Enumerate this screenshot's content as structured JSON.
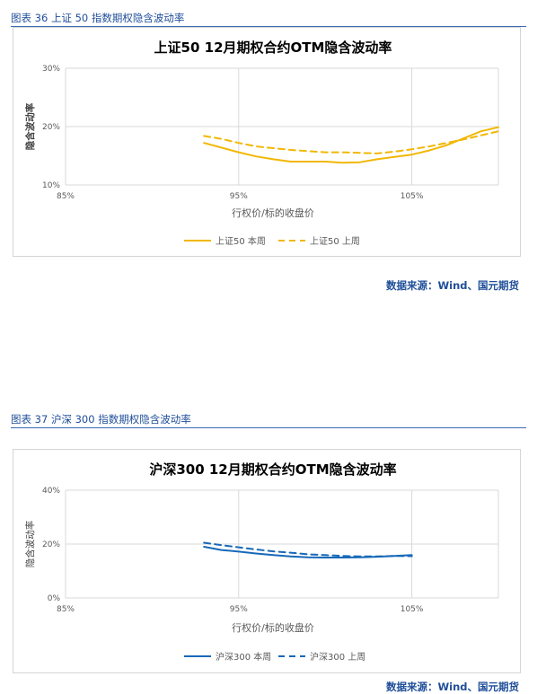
{
  "figures": [
    {
      "caption": "图表 36 上证 50 指数期权隐含波动率",
      "source": "数据来源：Wind、国元期货"
    },
    {
      "caption": "图表 37 沪深 300 指数期权隐含波动率",
      "source": "数据来源：Wind、国元期货"
    }
  ],
  "chart_data": [
    {
      "type": "line",
      "title": "上证50 12月期权合约OTM隐含波动率",
      "xlabel": "行权价/标的收盘价",
      "ylabel": "隐含波动率",
      "xlim": [
        85,
        110
      ],
      "ylim": [
        10,
        30
      ],
      "xticks": [
        85,
        95,
        105
      ],
      "xtick_labels": [
        "85%",
        "95%",
        "105%"
      ],
      "yticks": [
        10,
        20,
        30
      ],
      "ytick_labels": [
        "10%",
        "20%",
        "30%"
      ],
      "grid": true,
      "legend_position": "bottom-center",
      "series": [
        {
          "name": "上证50 本周",
          "color": "#f2b705",
          "dash": false,
          "x": [
            93,
            94,
            95,
            96,
            97,
            98,
            99,
            100,
            101,
            102,
            103,
            104,
            105,
            106,
            107,
            108,
            109,
            110
          ],
          "values": [
            17.2,
            16.4,
            15.6,
            14.9,
            14.4,
            14.0,
            14.0,
            14.0,
            13.8,
            13.9,
            14.4,
            14.8,
            15.2,
            15.9,
            16.8,
            18.0,
            19.2,
            19.9
          ]
        },
        {
          "name": "上证50 上周",
          "color": "#f2b705",
          "dash": true,
          "x": [
            93,
            94,
            95,
            96,
            97,
            98,
            99,
            100,
            101,
            102,
            103,
            104,
            105,
            106,
            107,
            108,
            109,
            110
          ],
          "values": [
            18.4,
            17.9,
            17.2,
            16.6,
            16.3,
            16.0,
            15.8,
            15.6,
            15.6,
            15.5,
            15.4,
            15.7,
            16.1,
            16.6,
            17.2,
            17.8,
            18.5,
            19.2
          ]
        }
      ]
    },
    {
      "type": "line",
      "title": "沪深300 12月期权合约OTM隐含波动率",
      "xlabel": "行权价/标的收盘价",
      "ylabel": "隐含波动率",
      "xlim": [
        85,
        110
      ],
      "ylim": [
        0,
        40
      ],
      "xticks": [
        85,
        95,
        105
      ],
      "xtick_labels": [
        "85%",
        "95%",
        "105%"
      ],
      "yticks": [
        0,
        20,
        40
      ],
      "ytick_labels": [
        "0%",
        "20%",
        "40%"
      ],
      "grid": true,
      "legend_position": "bottom-center",
      "series": [
        {
          "name": "沪深300 本周",
          "color": "#1769b8",
          "dash": false,
          "x": [
            93,
            94,
            95,
            96,
            97,
            98,
            99,
            100,
            101,
            102,
            103,
            104,
            105
          ],
          "values": [
            19.0,
            17.8,
            17.2,
            16.5,
            15.9,
            15.4,
            15.1,
            15.0,
            15.0,
            15.1,
            15.3,
            15.6,
            15.9
          ]
        },
        {
          "name": "沪深300 上周",
          "color": "#1769b8",
          "dash": true,
          "x": [
            93,
            94,
            95,
            96,
            97,
            98,
            99,
            100,
            101,
            102,
            103,
            104,
            105
          ],
          "values": [
            20.5,
            19.6,
            18.8,
            18.0,
            17.3,
            16.8,
            16.2,
            15.9,
            15.6,
            15.4,
            15.4,
            15.6,
            15.5
          ]
        }
      ]
    }
  ]
}
